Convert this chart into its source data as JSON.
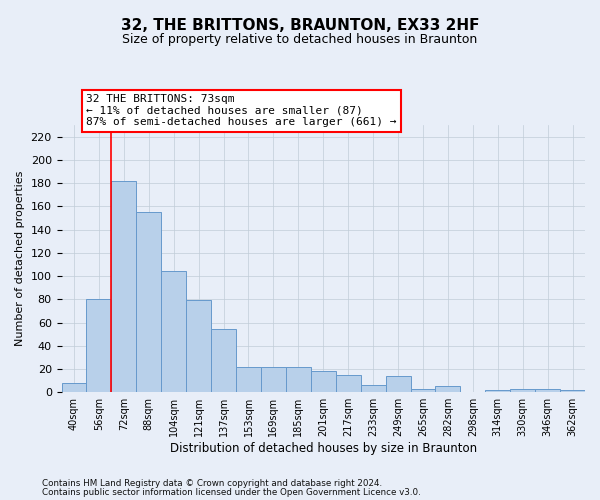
{
  "title": "32, THE BRITTONS, BRAUNTON, EX33 2HF",
  "subtitle": "Size of property relative to detached houses in Braunton",
  "xlabel": "Distribution of detached houses by size in Braunton",
  "ylabel": "Number of detached properties",
  "bar_labels": [
    "40sqm",
    "56sqm",
    "72sqm",
    "88sqm",
    "104sqm",
    "121sqm",
    "137sqm",
    "153sqm",
    "169sqm",
    "185sqm",
    "201sqm",
    "217sqm",
    "233sqm",
    "249sqm",
    "265sqm",
    "282sqm",
    "298sqm",
    "314sqm",
    "330sqm",
    "346sqm",
    "362sqm"
  ],
  "bar_values": [
    8,
    80,
    182,
    155,
    104,
    79,
    54,
    22,
    22,
    22,
    18,
    15,
    6,
    14,
    3,
    5,
    0,
    2,
    3,
    3,
    2
  ],
  "bar_color": "#b8d0ea",
  "bar_edge_color": "#6699cc",
  "grid_color": "#c0ccd8",
  "red_line_x": 1.5,
  "ylim": [
    0,
    230
  ],
  "yticks": [
    0,
    20,
    40,
    60,
    80,
    100,
    120,
    140,
    160,
    180,
    200,
    220
  ],
  "annotation_text_line1": "32 THE BRITTONS: 73sqm",
  "annotation_text_line2": "← 11% of detached houses are smaller (87)",
  "annotation_text_line3": "87% of semi-detached houses are larger (661) →",
  "footer_line1": "Contains HM Land Registry data © Crown copyright and database right 2024.",
  "footer_line2": "Contains public sector information licensed under the Open Government Licence v3.0.",
  "bg_color": "#e8eef8",
  "plot_bg_color": "#e8eef8"
}
